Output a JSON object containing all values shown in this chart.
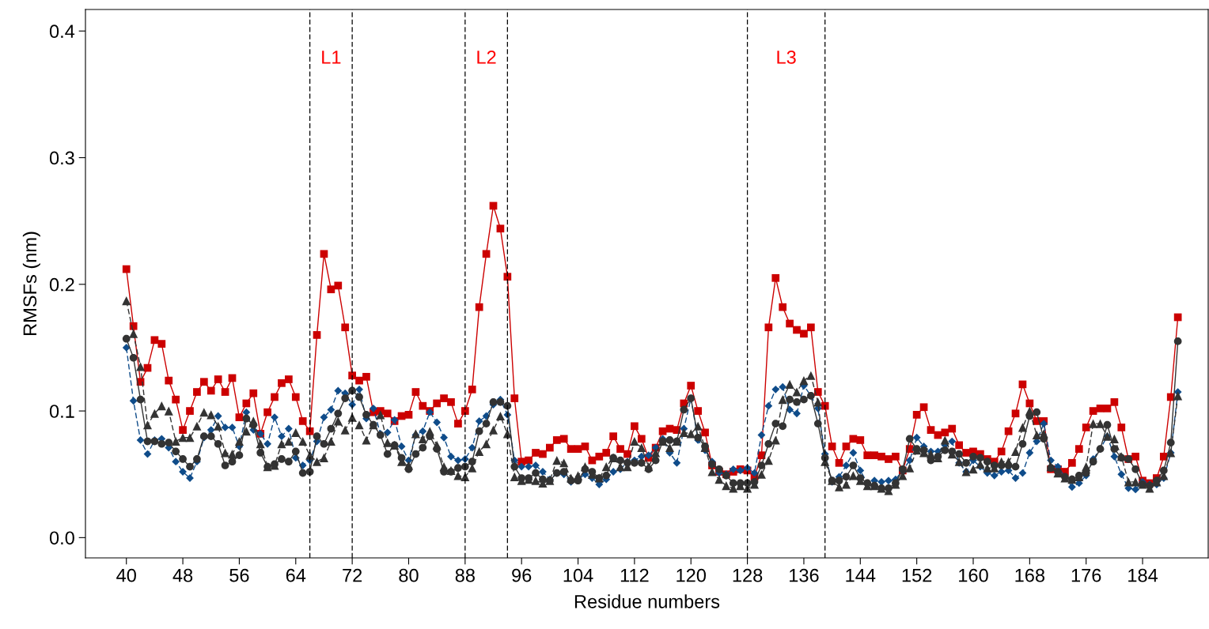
{
  "chart_data": {
    "type": "line",
    "xlabel": "Residue numbers",
    "ylabel": "RMSFs (nm)",
    "x": [
      40,
      41,
      42,
      43,
      44,
      45,
      46,
      47,
      48,
      49,
      50,
      51,
      52,
      53,
      54,
      55,
      56,
      57,
      58,
      59,
      60,
      61,
      62,
      63,
      64,
      65,
      66,
      67,
      68,
      69,
      70,
      71,
      72,
      73,
      74,
      75,
      76,
      77,
      78,
      79,
      80,
      81,
      82,
      83,
      84,
      85,
      86,
      87,
      88,
      89,
      90,
      91,
      92,
      93,
      94,
      95,
      96,
      97,
      98,
      99,
      100,
      101,
      102,
      103,
      104,
      105,
      106,
      107,
      108,
      109,
      110,
      111,
      112,
      113,
      114,
      115,
      116,
      117,
      118,
      119,
      120,
      121,
      122,
      123,
      124,
      125,
      126,
      127,
      128,
      129,
      130,
      131,
      132,
      133,
      134,
      135,
      136,
      137,
      138,
      139,
      140,
      141,
      142,
      143,
      144,
      145,
      146,
      147,
      148,
      149,
      150,
      151,
      152,
      153,
      154,
      155,
      156,
      157,
      158,
      159,
      160,
      161,
      162,
      163,
      164,
      165,
      166,
      167,
      168,
      169,
      170,
      171,
      172,
      173,
      174,
      175,
      176,
      177,
      178,
      179,
      180,
      181,
      182,
      183,
      184,
      185,
      186,
      187,
      188,
      189
    ],
    "series": [
      {
        "color": "#cc0000",
        "marker": "square",
        "line_style": "solid",
        "values": [
          0.212,
          0.167,
          0.123,
          0.134,
          0.156,
          0.153,
          0.124,
          0.109,
          0.085,
          0.1,
          0.115,
          0.123,
          0.116,
          0.125,
          0.115,
          0.126,
          0.095,
          0.106,
          0.114,
          0.082,
          0.099,
          0.111,
          0.122,
          0.125,
          0.111,
          0.092,
          0.084,
          0.16,
          0.224,
          0.196,
          0.199,
          0.166,
          0.128,
          0.124,
          0.127,
          0.099,
          0.1,
          0.098,
          0.092,
          0.096,
          0.097,
          0.115,
          0.104,
          0.1,
          0.106,
          0.11,
          0.107,
          0.09,
          0.1,
          0.117,
          0.182,
          0.224,
          0.262,
          0.244,
          0.206,
          0.11,
          0.06,
          0.061,
          0.067,
          0.066,
          0.071,
          0.077,
          0.078,
          0.07,
          0.07,
          0.072,
          0.061,
          0.064,
          0.067,
          0.08,
          0.07,
          0.066,
          0.088,
          0.078,
          0.063,
          0.071,
          0.084,
          0.086,
          0.085,
          0.106,
          0.12,
          0.1,
          0.083,
          0.057,
          0.052,
          0.05,
          0.052,
          0.054,
          0.053,
          0.048,
          0.065,
          0.166,
          0.205,
          0.182,
          0.169,
          0.164,
          0.161,
          0.166,
          0.115,
          0.104,
          0.072,
          0.059,
          0.072,
          0.078,
          0.077,
          0.065,
          0.065,
          0.064,
          0.062,
          0.064,
          0.053,
          0.07,
          0.097,
          0.103,
          0.085,
          0.081,
          0.083,
          0.086,
          0.073,
          0.067,
          0.068,
          0.066,
          0.062,
          0.06,
          0.068,
          0.084,
          0.098,
          0.121,
          0.106,
          0.092,
          0.092,
          0.054,
          0.054,
          0.052,
          0.059,
          0.07,
          0.087,
          0.1,
          0.102,
          0.102,
          0.107,
          0.087,
          0.062,
          0.064,
          0.045,
          0.043,
          0.047,
          0.064,
          0.111,
          0.174
        ]
      },
      {
        "color": "#0f4c8a",
        "marker": "diamond",
        "line_style": "dashed",
        "values": [
          0.15,
          0.108,
          0.077,
          0.066,
          0.077,
          0.078,
          0.071,
          0.06,
          0.052,
          0.047,
          0.06,
          0.079,
          0.085,
          0.096,
          0.087,
          0.087,
          0.072,
          0.099,
          0.085,
          0.082,
          0.074,
          0.095,
          0.08,
          0.086,
          0.063,
          0.057,
          0.061,
          0.076,
          0.095,
          0.101,
          0.116,
          0.114,
          0.105,
          0.117,
          0.094,
          0.102,
          0.082,
          0.083,
          0.093,
          0.072,
          0.061,
          0.081,
          0.084,
          0.099,
          0.091,
          0.079,
          0.064,
          0.061,
          0.062,
          0.071,
          0.092,
          0.096,
          0.105,
          0.109,
          0.097,
          0.061,
          0.056,
          0.056,
          0.057,
          0.052,
          0.046,
          0.051,
          0.05,
          0.044,
          0.046,
          0.05,
          0.047,
          0.042,
          0.046,
          0.052,
          0.054,
          0.06,
          0.061,
          0.064,
          0.065,
          0.071,
          0.078,
          0.067,
          0.059,
          0.086,
          0.11,
          0.077,
          0.069,
          0.06,
          0.051,
          0.05,
          0.054,
          0.053,
          0.055,
          0.051,
          0.081,
          0.104,
          0.117,
          0.119,
          0.101,
          0.098,
          0.12,
          0.112,
          0.102,
          0.066,
          0.044,
          0.048,
          0.057,
          0.067,
          0.053,
          0.043,
          0.045,
          0.044,
          0.045,
          0.046,
          0.053,
          0.061,
          0.079,
          0.072,
          0.068,
          0.068,
          0.073,
          0.076,
          0.059,
          0.052,
          0.061,
          0.056,
          0.051,
          0.049,
          0.052,
          0.053,
          0.047,
          0.051,
          0.067,
          0.076,
          0.09,
          0.061,
          0.056,
          0.048,
          0.04,
          0.043,
          0.049,
          0.062,
          0.07,
          0.08,
          0.064,
          0.05,
          0.039,
          0.038,
          0.044,
          0.042,
          0.042,
          0.047,
          0.067,
          0.115
        ]
      },
      {
        "color": "#333333",
        "marker": "circle",
        "line_style": "solid",
        "values": [
          0.157,
          0.142,
          0.109,
          0.076,
          0.076,
          0.074,
          0.075,
          0.068,
          0.062,
          0.056,
          0.062,
          0.08,
          0.08,
          0.074,
          0.057,
          0.06,
          0.065,
          0.094,
          0.089,
          0.067,
          0.056,
          0.058,
          0.062,
          0.06,
          0.068,
          0.051,
          0.052,
          0.08,
          0.074,
          0.086,
          0.098,
          0.11,
          0.116,
          0.111,
          0.097,
          0.089,
          0.081,
          0.066,
          0.073,
          0.063,
          0.054,
          0.066,
          0.071,
          0.08,
          0.07,
          0.052,
          0.052,
          0.055,
          0.056,
          0.06,
          0.084,
          0.09,
          0.107,
          0.107,
          0.104,
          0.056,
          0.047,
          0.047,
          0.051,
          0.046,
          0.045,
          0.051,
          0.052,
          0.045,
          0.045,
          0.054,
          0.052,
          0.047,
          0.049,
          0.063,
          0.061,
          0.059,
          0.059,
          0.059,
          0.054,
          0.061,
          0.076,
          0.077,
          0.076,
          0.101,
          0.11,
          0.079,
          0.072,
          0.058,
          0.054,
          0.049,
          0.043,
          0.043,
          0.043,
          0.044,
          0.057,
          0.074,
          0.09,
          0.088,
          0.109,
          0.107,
          0.109,
          0.112,
          0.09,
          0.063,
          0.045,
          0.045,
          0.048,
          0.057,
          0.047,
          0.043,
          0.041,
          0.039,
          0.039,
          0.043,
          0.054,
          0.078,
          0.07,
          0.069,
          0.061,
          0.064,
          0.069,
          0.068,
          0.066,
          0.059,
          0.064,
          0.063,
          0.06,
          0.057,
          0.057,
          0.057,
          0.056,
          0.074,
          0.096,
          0.099,
          0.078,
          0.055,
          0.052,
          0.048,
          0.046,
          0.049,
          0.051,
          0.06,
          0.07,
          0.089,
          0.07,
          0.063,
          0.062,
          0.054,
          0.042,
          0.041,
          0.045,
          0.053,
          0.075,
          0.155
        ]
      },
      {
        "color": "#333333",
        "marker": "triangle",
        "line_style": "dashed",
        "values": [
          0.187,
          0.161,
          0.135,
          0.089,
          0.098,
          0.104,
          0.1,
          0.076,
          0.079,
          0.079,
          0.088,
          0.099,
          0.097,
          0.088,
          0.067,
          0.066,
          0.076,
          0.084,
          0.092,
          0.074,
          0.056,
          0.057,
          0.074,
          0.076,
          0.083,
          0.076,
          0.065,
          0.06,
          0.063,
          0.076,
          0.092,
          0.085,
          0.095,
          0.089,
          0.077,
          0.089,
          0.097,
          0.075,
          0.073,
          0.06,
          0.057,
          0.082,
          0.078,
          0.084,
          0.073,
          0.056,
          0.053,
          0.049,
          0.048,
          0.055,
          0.068,
          0.074,
          0.085,
          0.096,
          0.082,
          0.048,
          0.045,
          0.046,
          0.045,
          0.043,
          0.045,
          0.061,
          0.059,
          0.047,
          0.049,
          0.056,
          0.05,
          0.047,
          0.056,
          0.063,
          0.056,
          0.056,
          0.076,
          0.071,
          0.056,
          0.067,
          0.076,
          0.071,
          0.076,
          0.083,
          0.082,
          0.088,
          0.071,
          0.052,
          0.046,
          0.041,
          0.039,
          0.041,
          0.039,
          0.042,
          0.05,
          0.061,
          0.077,
          0.109,
          0.121,
          0.115,
          0.124,
          0.128,
          0.107,
          0.06,
          0.045,
          0.04,
          0.042,
          0.049,
          0.045,
          0.041,
          0.041,
          0.039,
          0.037,
          0.042,
          0.049,
          0.055,
          0.069,
          0.067,
          0.066,
          0.063,
          0.077,
          0.066,
          0.06,
          0.052,
          0.054,
          0.058,
          0.055,
          0.055,
          0.06,
          0.06,
          0.068,
          0.087,
          0.1,
          0.081,
          0.082,
          0.056,
          0.051,
          0.047,
          0.046,
          0.048,
          0.056,
          0.09,
          0.09,
          0.08,
          0.078,
          0.064,
          0.044,
          0.044,
          0.042,
          0.039,
          0.044,
          0.049,
          0.067,
          0.112
        ]
      }
    ],
    "xlim": [
      34.2,
      193.3
    ],
    "ylim": [
      -0.016,
      0.417
    ],
    "xticks": [
      40,
      48,
      56,
      64,
      72,
      80,
      88,
      96,
      104,
      112,
      120,
      128,
      136,
      144,
      152,
      160,
      168,
      176,
      184
    ],
    "yticks": [
      {
        "value": 0,
        "label": "0.0"
      },
      {
        "value": 0.1,
        "label": "0.1"
      },
      {
        "value": 0.2,
        "label": "0.2"
      },
      {
        "value": 0.3,
        "label": "0.3"
      },
      {
        "value": 0.4,
        "label": "0.4"
      }
    ],
    "ref_lines": [
      {
        "axis": "x",
        "value": 66,
        "color": "#000000",
        "line_style": "dashed"
      },
      {
        "axis": "x",
        "value": 72,
        "color": "#000000",
        "line_style": "dashed"
      },
      {
        "axis": "x",
        "value": 88,
        "color": "#000000",
        "line_style": "dashed"
      },
      {
        "axis": "x",
        "value": 94,
        "color": "#000000",
        "line_style": "dashed"
      },
      {
        "axis": "x",
        "value": 128,
        "color": "#000000",
        "line_style": "dashed"
      },
      {
        "axis": "x",
        "value": 139,
        "color": "#000000",
        "line_style": "dashed"
      }
    ],
    "annotations": [
      "L1",
      "L2",
      "L3"
    ],
    "grid": false,
    "legend": false
  }
}
